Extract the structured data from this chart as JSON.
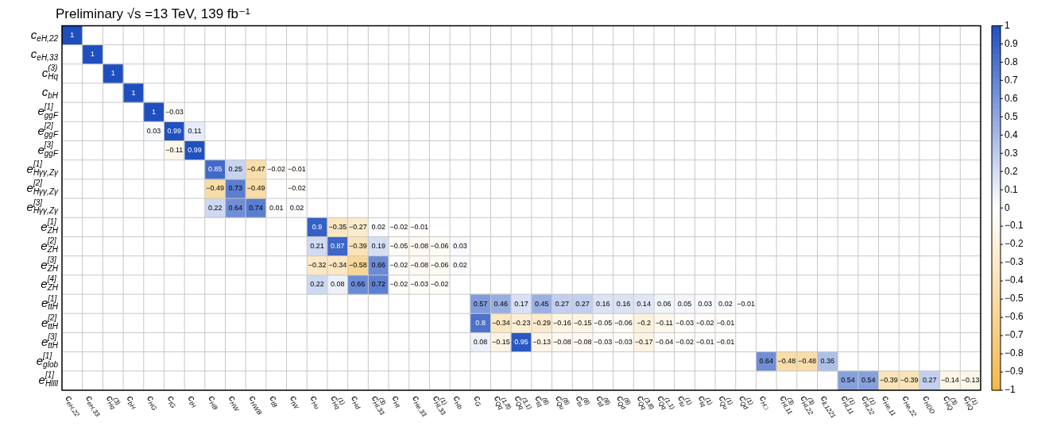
{
  "chart_data": {
    "type": "heatmap",
    "title": "Preliminary √s =13 TeV, 139 fb⁻¹",
    "categories": [
      "c$_{eH,22}$",
      "c$_{eH,33}$",
      "c$^{(3)}$$_{Hq}$",
      "c$_{bH}$",
      "c$_{HG}$",
      "c$_{tG}$",
      "c$_{tH}$",
      "c$_{HB}$",
      "c$_{HW}$",
      "c$_{HWB}$",
      "c$_{tB}$",
      "c$_{tW}$",
      "c$_{Hu}$",
      "c$^{(1)}$$_{Hq}$",
      "c$_{Hd}$",
      "c$^{(3)}$$_{Hl,33}$",
      "c$_{Ht}$",
      "c$_{He,33}$",
      "c$^{(1)}$$_{Hl,33}$",
      "c$_{Hb}$",
      "c$_{G}$",
      "c$^{(1,8)}$$_{Qq}$",
      "c$^{(3,1)}$$_{Qq}$",
      "c$^{(8)}$$_{tq}$",
      "c$^{(8)}$$_{Qu}$",
      "c$^{(8)}$$_{tu}$",
      "c$^{(8)}$$_{td}$",
      "c$^{(8)}$$_{Qd}$",
      "c$^{(3,8)}$$_{Qq}$",
      "c$^{(1,1)}$$_{Qq}$",
      "c$^{(1)}$$_{tu}$",
      "c$^{(1)}$$_{tq}$",
      "c$^{(1)}$$_{Qu}$",
      "c$^{(1)}$$_{Qd}$",
      "c$_{H□}$",
      "c$^{(3)}$$_{Hl,11}$",
      "c$^{(3)}$$_{Hl,22}$",
      "c$_{ll,1221}$",
      "c$^{(1)}$$_{Hl,11}$",
      "c$^{(1)}$$_{Hl,22}$",
      "c$_{He,11}$",
      "c$_{He,22}$",
      "c$_{HDD}$",
      "c$^{(3)}$$_{HQ}$",
      "c$^{(1)}$$_{HQ}$"
    ],
    "y_categories": [
      "c$_{eH,22}$",
      "c$_{eH,33}$",
      "c$^{(3)}$$_{Hq}$",
      "c$_{bH}$",
      "e$^{[1]}$$_{ggF}$",
      "e$^{[2]}$$_{ggF}$",
      "e$^{[3]}$$_{ggF}$",
      "e$^{[1]}$$_{Hγγ,Zγ}$",
      "e$^{[2]}$$_{Hγγ,Zγ}$",
      "e$^{[3]}$$_{Hγγ,Zγ}$",
      "e$^{[1]}$$_{ZH}$",
      "e$^{[2]}$$_{ZH}$",
      "e$^{[3]}$$_{ZH}$",
      "e$^{[4]}$$_{ZH}$",
      "e$^{[1]}$$_{ttH}$",
      "e$^{[2]}$$_{ttH}$",
      "e$^{[3]}$$_{ttH}$",
      "e$^{[1]}$$_{glob}$",
      "e$^{[1]}$$_{Hllll}$"
    ],
    "cells": [
      [
        1,
        null,
        null,
        null,
        null,
        null,
        null,
        null,
        null,
        null,
        null,
        null,
        null,
        null,
        null,
        null,
        null,
        null,
        null,
        null,
        null,
        null,
        null,
        null,
        null,
        null,
        null,
        null,
        null,
        null,
        null,
        null,
        null,
        null,
        null,
        null,
        null,
        null,
        null,
        null,
        null,
        null,
        null,
        null,
        null
      ],
      [
        null,
        1,
        null,
        null,
        null,
        null,
        null,
        null,
        null,
        null,
        null,
        null,
        null,
        null,
        null,
        null,
        null,
        null,
        null,
        null,
        null,
        null,
        null,
        null,
        null,
        null,
        null,
        null,
        null,
        null,
        null,
        null,
        null,
        null,
        null,
        null,
        null,
        null,
        null,
        null,
        null,
        null,
        null,
        null,
        null
      ],
      [
        null,
        null,
        1,
        null,
        null,
        null,
        null,
        null,
        null,
        null,
        null,
        null,
        null,
        null,
        null,
        null,
        null,
        null,
        null,
        null,
        null,
        null,
        null,
        null,
        null,
        null,
        null,
        null,
        null,
        null,
        null,
        null,
        null,
        null,
        null,
        null,
        null,
        null,
        null,
        null,
        null,
        null,
        null,
        null,
        null
      ],
      [
        null,
        null,
        null,
        1,
        null,
        null,
        null,
        null,
        null,
        null,
        null,
        null,
        null,
        null,
        null,
        null,
        null,
        null,
        null,
        null,
        null,
        null,
        null,
        null,
        null,
        null,
        null,
        null,
        null,
        null,
        null,
        null,
        null,
        null,
        null,
        null,
        null,
        null,
        null,
        null,
        null,
        null,
        null,
        null,
        null
      ],
      [
        null,
        null,
        null,
        null,
        1,
        -0.03,
        null,
        null,
        null,
        null,
        null,
        null,
        null,
        null,
        null,
        null,
        null,
        null,
        null,
        null,
        null,
        null,
        null,
        null,
        null,
        null,
        null,
        null,
        null,
        null,
        null,
        null,
        null,
        null,
        null,
        null,
        null,
        null,
        null,
        null,
        null,
        null,
        null,
        null,
        null
      ],
      [
        null,
        null,
        null,
        null,
        0.03,
        0.99,
        0.11,
        null,
        null,
        null,
        null,
        null,
        null,
        null,
        null,
        null,
        null,
        null,
        null,
        null,
        null,
        null,
        null,
        null,
        null,
        null,
        null,
        null,
        null,
        null,
        null,
        null,
        null,
        null,
        null,
        null,
        null,
        null,
        null,
        null,
        null,
        null,
        null,
        null,
        null
      ],
      [
        null,
        null,
        null,
        null,
        null,
        -0.11,
        0.99,
        null,
        null,
        null,
        null,
        null,
        null,
        null,
        null,
        null,
        null,
        null,
        null,
        null,
        null,
        null,
        null,
        null,
        null,
        null,
        null,
        null,
        null,
        null,
        null,
        null,
        null,
        null,
        null,
        null,
        null,
        null,
        null,
        null,
        null,
        null,
        null,
        null,
        null
      ],
      [
        null,
        null,
        null,
        null,
        null,
        null,
        null,
        0.85,
        0.25,
        -0.47,
        -0.02,
        -0.01,
        null,
        null,
        null,
        null,
        null,
        null,
        null,
        null,
        null,
        null,
        null,
        null,
        null,
        null,
        null,
        null,
        null,
        null,
        null,
        null,
        null,
        null,
        null,
        null,
        null,
        null,
        null,
        null,
        null,
        null,
        null,
        null,
        null
      ],
      [
        null,
        null,
        null,
        null,
        null,
        null,
        null,
        -0.49,
        0.73,
        -0.49,
        null,
        -0.02,
        null,
        null,
        null,
        null,
        null,
        null,
        null,
        null,
        null,
        null,
        null,
        null,
        null,
        null,
        null,
        null,
        null,
        null,
        null,
        null,
        null,
        null,
        null,
        null,
        null,
        null,
        null,
        null,
        null,
        null,
        null,
        null,
        null
      ],
      [
        null,
        null,
        null,
        null,
        null,
        null,
        null,
        0.22,
        0.64,
        0.74,
        0.01,
        0.02,
        null,
        null,
        null,
        null,
        null,
        null,
        null,
        null,
        null,
        null,
        null,
        null,
        null,
        null,
        null,
        null,
        null,
        null,
        null,
        null,
        null,
        null,
        null,
        null,
        null,
        null,
        null,
        null,
        null,
        null,
        null,
        null,
        null
      ],
      [
        null,
        null,
        null,
        null,
        null,
        null,
        null,
        null,
        null,
        null,
        null,
        null,
        0.9,
        -0.35,
        -0.27,
        0.02,
        -0.02,
        -0.01,
        null,
        null,
        null,
        null,
        null,
        null,
        null,
        null,
        null,
        null,
        null,
        null,
        null,
        null,
        null,
        null,
        null,
        null,
        null,
        null,
        null,
        null,
        null,
        null,
        null,
        null,
        null
      ],
      [
        null,
        null,
        null,
        null,
        null,
        null,
        null,
        null,
        null,
        null,
        null,
        null,
        0.21,
        0.87,
        -0.39,
        0.19,
        -0.05,
        -0.08,
        -0.06,
        0.03,
        null,
        null,
        null,
        null,
        null,
        null,
        null,
        null,
        null,
        null,
        null,
        null,
        null,
        null,
        null,
        null,
        null,
        null,
        null,
        null,
        null,
        null,
        null,
        null,
        null
      ],
      [
        null,
        null,
        null,
        null,
        null,
        null,
        null,
        null,
        null,
        null,
        null,
        null,
        -0.32,
        -0.34,
        -0.58,
        0.66,
        -0.02,
        -0.08,
        -0.06,
        0.02,
        null,
        null,
        null,
        null,
        null,
        null,
        null,
        null,
        null,
        null,
        null,
        null,
        null,
        null,
        null,
        null,
        null,
        null,
        null,
        null,
        null,
        null,
        null,
        null,
        null
      ],
      [
        null,
        null,
        null,
        null,
        null,
        null,
        null,
        null,
        null,
        null,
        null,
        null,
        0.22,
        0.08,
        0.66,
        0.72,
        -0.02,
        -0.03,
        -0.02,
        null,
        null,
        null,
        null,
        null,
        null,
        null,
        null,
        null,
        null,
        null,
        null,
        null,
        null,
        null,
        null,
        null,
        null,
        null,
        null,
        null,
        null,
        null,
        null,
        null,
        null
      ],
      [
        null,
        null,
        null,
        null,
        null,
        null,
        null,
        null,
        null,
        null,
        null,
        null,
        null,
        null,
        null,
        null,
        null,
        null,
        null,
        null,
        0.57,
        0.46,
        0.17,
        0.45,
        0.27,
        0.27,
        0.16,
        0.16,
        0.14,
        0.06,
        0.05,
        0.03,
        0.02,
        -0.01,
        null,
        null,
        null,
        null,
        null,
        null,
        null,
        null,
        null,
        null,
        null
      ],
      [
        null,
        null,
        null,
        null,
        null,
        null,
        null,
        null,
        null,
        null,
        null,
        null,
        null,
        null,
        null,
        null,
        null,
        null,
        null,
        null,
        0.8,
        -0.34,
        -0.23,
        -0.29,
        -0.16,
        -0.15,
        -0.05,
        -0.06,
        -0.2,
        -0.11,
        -0.03,
        -0.02,
        -0.01,
        null,
        null,
        null,
        null,
        null,
        null,
        null,
        null,
        null,
        null,
        null,
        null
      ],
      [
        null,
        null,
        null,
        null,
        null,
        null,
        null,
        null,
        null,
        null,
        null,
        null,
        null,
        null,
        null,
        null,
        null,
        null,
        null,
        null,
        0.08,
        -0.15,
        0.95,
        -0.13,
        -0.08,
        -0.08,
        -0.03,
        -0.03,
        -0.17,
        -0.04,
        -0.02,
        -0.01,
        -0.01,
        null,
        null,
        null,
        null,
        null,
        null,
        null,
        null,
        null,
        null,
        null,
        null
      ],
      [
        null,
        null,
        null,
        null,
        null,
        null,
        null,
        null,
        null,
        null,
        null,
        null,
        null,
        null,
        null,
        null,
        null,
        null,
        null,
        null,
        null,
        null,
        null,
        null,
        null,
        null,
        null,
        null,
        null,
        null,
        null,
        null,
        null,
        null,
        0.64,
        -0.48,
        -0.48,
        0.36,
        null,
        null,
        null,
        null,
        null,
        null,
        null
      ],
      [
        null,
        null,
        null,
        null,
        null,
        null,
        null,
        null,
        null,
        null,
        null,
        null,
        null,
        null,
        null,
        null,
        null,
        null,
        null,
        null,
        null,
        null,
        null,
        null,
        null,
        null,
        null,
        null,
        null,
        null,
        null,
        null,
        null,
        null,
        null,
        null,
        null,
        null,
        0.54,
        0.54,
        -0.39,
        -0.39,
        0.27,
        -0.14,
        -0.13
      ]
    ],
    "clim": [
      -1,
      1
    ],
    "cticks": [
      -1,
      -0.9,
      -0.8,
      -0.7,
      -0.6,
      -0.5,
      -0.4,
      -0.3,
      -0.2,
      -0.1,
      0,
      0.1,
      0.2,
      0.3,
      0.4,
      0.5,
      0.6,
      0.7,
      0.8,
      0.9,
      1
    ],
    "data_labels": true,
    "grid": true
  }
}
